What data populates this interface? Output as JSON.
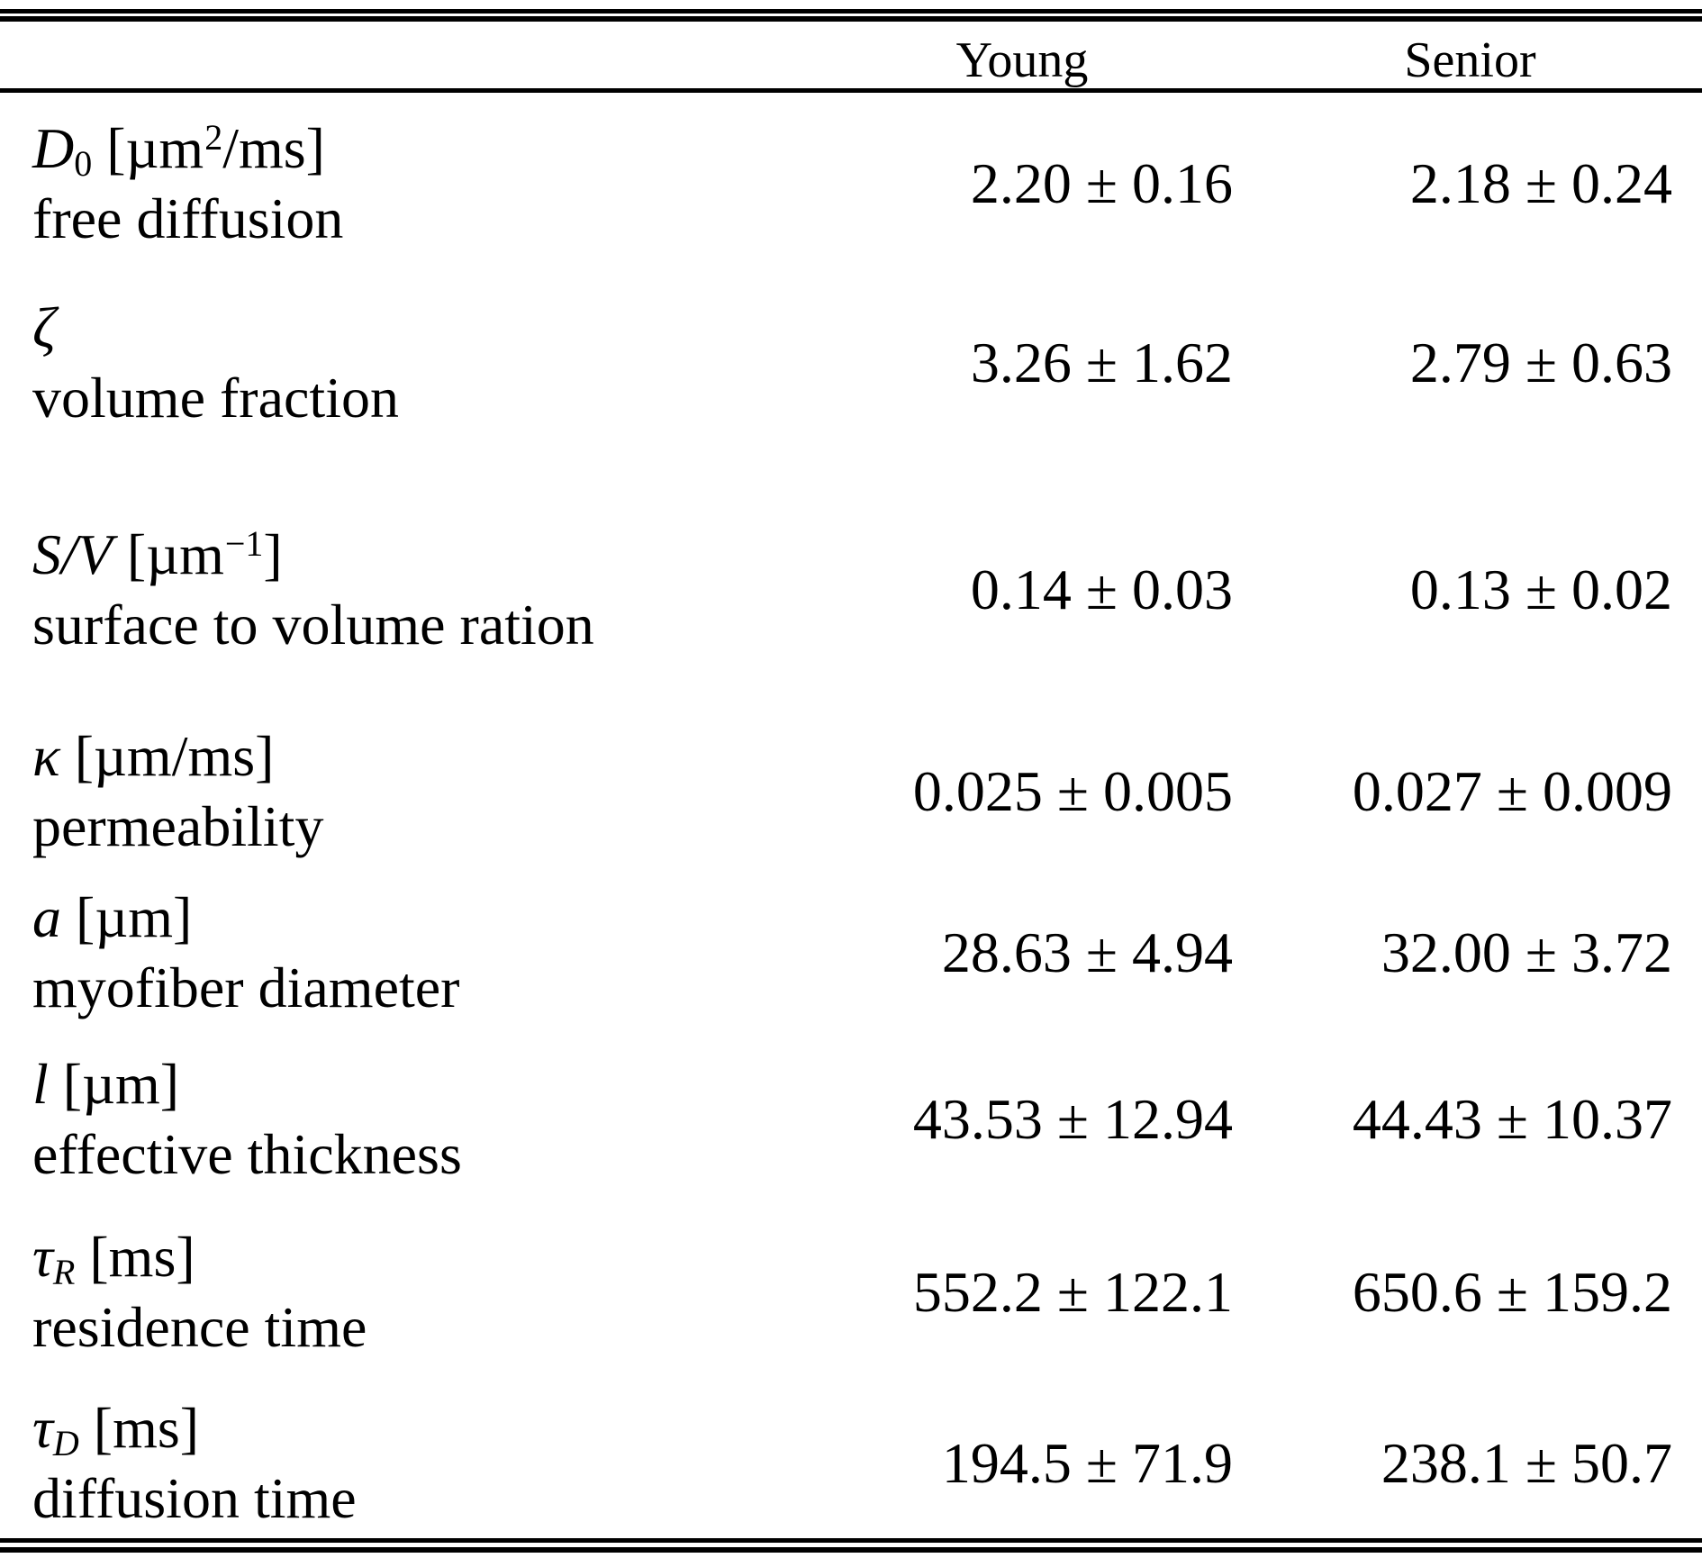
{
  "table": {
    "columns": {
      "parameter": "",
      "young": "Young",
      "senior": "Senior"
    },
    "rows": [
      {
        "sym": "D",
        "sub_up": "0",
        "sub_it": "",
        "unit_pre": "[µm",
        "unit_sup": "2",
        "unit_post": "/ms]",
        "desc": "free diffusion",
        "young": "2.20 ± 0.16",
        "senior": "2.18 ± 0.24"
      },
      {
        "sym": "ζ",
        "sub_up": "",
        "sub_it": "",
        "unit_pre": "",
        "unit_sup": "",
        "unit_post": "",
        "desc": "volume fraction",
        "young": "3.26 ± 1.62",
        "senior": "2.79 ± 0.63"
      },
      {
        "sym": "S/V",
        "sub_up": "",
        "sub_it": "",
        "unit_pre": "[µm",
        "unit_sup": "−1",
        "unit_post": "]",
        "desc": "surface to volume ration",
        "young": "0.14 ± 0.03",
        "senior": "0.13 ± 0.02"
      },
      {
        "sym": "κ",
        "sub_up": "",
        "sub_it": "",
        "unit_pre": "[µm/ms]",
        "unit_sup": "",
        "unit_post": "",
        "desc": "permeability",
        "young": "0.025 ± 0.005",
        "senior": "0.027 ± 0.009"
      },
      {
        "sym": "a",
        "sub_up": "",
        "sub_it": "",
        "unit_pre": "[µm]",
        "unit_sup": "",
        "unit_post": "",
        "desc": "myofiber diameter",
        "young": "28.63 ± 4.94",
        "senior": "32.00 ± 3.72"
      },
      {
        "sym": "l",
        "sub_up": "",
        "sub_it": "",
        "unit_pre": "[µm]",
        "unit_sup": "",
        "unit_post": "",
        "desc": "effective thickness",
        "young": "43.53 ± 12.94",
        "senior": "44.43 ± 10.37"
      },
      {
        "sym": "τ",
        "sub_up": "",
        "sub_it": "R",
        "unit_pre": "[ms]",
        "unit_sup": "",
        "unit_post": "",
        "desc": "residence time",
        "young": "552.2 ± 122.1",
        "senior": "650.6 ± 159.2"
      },
      {
        "sym": "τ",
        "sub_up": "",
        "sub_it": "D",
        "unit_pre": "[ms]",
        "unit_sup": "",
        "unit_post": "",
        "desc": "diffusion time",
        "young": "194.5 ± 71.9",
        "senior": "238.1 ± 50.7"
      }
    ]
  },
  "colors": {
    "text": "#000000",
    "background": "#ffffff",
    "rule": "#000000"
  }
}
